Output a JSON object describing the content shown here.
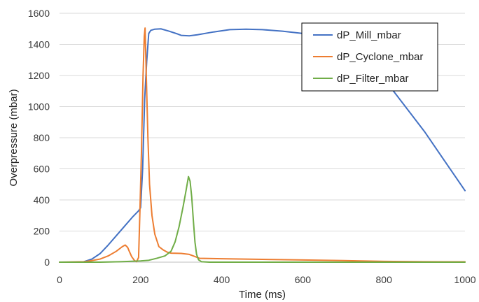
{
  "chart_data": {
    "type": "line",
    "title": "",
    "xlabel": "Time (ms)",
    "ylabel": "Overpressure (mbar)",
    "xlim": [
      0,
      1000
    ],
    "ylim": [
      0,
      1600
    ],
    "x_ticks": [
      0,
      200,
      400,
      600,
      800,
      1000
    ],
    "y_ticks": [
      0,
      200,
      400,
      600,
      800,
      1000,
      1200,
      1400,
      1600
    ],
    "grid": "horizontal",
    "legend_position": "top-right",
    "series": [
      {
        "name": "dP_Mill_mbar",
        "color": "#4472C4",
        "points": [
          [
            0,
            0
          ],
          [
            40,
            0
          ],
          [
            60,
            3
          ],
          [
            80,
            20
          ],
          [
            100,
            55
          ],
          [
            120,
            110
          ],
          [
            140,
            170
          ],
          [
            160,
            230
          ],
          [
            180,
            290
          ],
          [
            195,
            330
          ],
          [
            200,
            350
          ],
          [
            205,
            600
          ],
          [
            210,
            1050
          ],
          [
            215,
            1290
          ],
          [
            220,
            1470
          ],
          [
            225,
            1490
          ],
          [
            235,
            1498
          ],
          [
            250,
            1500
          ],
          [
            270,
            1485
          ],
          [
            290,
            1468
          ],
          [
            300,
            1458
          ],
          [
            320,
            1455
          ],
          [
            340,
            1462
          ],
          [
            380,
            1480
          ],
          [
            420,
            1495
          ],
          [
            460,
            1498
          ],
          [
            500,
            1495
          ],
          [
            550,
            1485
          ],
          [
            600,
            1470
          ],
          [
            650,
            1440
          ],
          [
            700,
            1390
          ],
          [
            750,
            1310
          ],
          [
            800,
            1180
          ],
          [
            850,
            1010
          ],
          [
            900,
            840
          ],
          [
            950,
            650
          ],
          [
            1000,
            460
          ]
        ]
      },
      {
        "name": "dP_Cyclone_mbar",
        "color": "#ED7D31",
        "points": [
          [
            0,
            0
          ],
          [
            60,
            3
          ],
          [
            80,
            10
          ],
          [
            100,
            20
          ],
          [
            120,
            40
          ],
          [
            140,
            70
          ],
          [
            155,
            100
          ],
          [
            162,
            110
          ],
          [
            168,
            95
          ],
          [
            172,
            70
          ],
          [
            178,
            35
          ],
          [
            185,
            10
          ],
          [
            190,
            3
          ],
          [
            195,
            30
          ],
          [
            198,
            300
          ],
          [
            202,
            700
          ],
          [
            206,
            1200
          ],
          [
            209,
            1450
          ],
          [
            211,
            1505
          ],
          [
            214,
            1200
          ],
          [
            218,
            800
          ],
          [
            222,
            500
          ],
          [
            228,
            300
          ],
          [
            235,
            180
          ],
          [
            245,
            100
          ],
          [
            255,
            80
          ],
          [
            265,
            65
          ],
          [
            275,
            58
          ],
          [
            300,
            56
          ],
          [
            320,
            50
          ],
          [
            335,
            35
          ],
          [
            345,
            25
          ],
          [
            400,
            22
          ],
          [
            500,
            18
          ],
          [
            600,
            14
          ],
          [
            700,
            10
          ],
          [
            800,
            5
          ],
          [
            900,
            3
          ],
          [
            1000,
            2
          ]
        ]
      },
      {
        "name": "dP_Filter_mbar",
        "color": "#70AD47",
        "points": [
          [
            0,
            0
          ],
          [
            100,
            0
          ],
          [
            150,
            3
          ],
          [
            200,
            8
          ],
          [
            220,
            12
          ],
          [
            240,
            25
          ],
          [
            260,
            40
          ],
          [
            275,
            70
          ],
          [
            285,
            130
          ],
          [
            295,
            230
          ],
          [
            305,
            360
          ],
          [
            312,
            460
          ],
          [
            318,
            550
          ],
          [
            322,
            520
          ],
          [
            326,
            420
          ],
          [
            330,
            270
          ],
          [
            334,
            130
          ],
          [
            338,
            50
          ],
          [
            343,
            15
          ],
          [
            350,
            3
          ],
          [
            370,
            0
          ],
          [
            1000,
            0
          ]
        ]
      }
    ]
  }
}
